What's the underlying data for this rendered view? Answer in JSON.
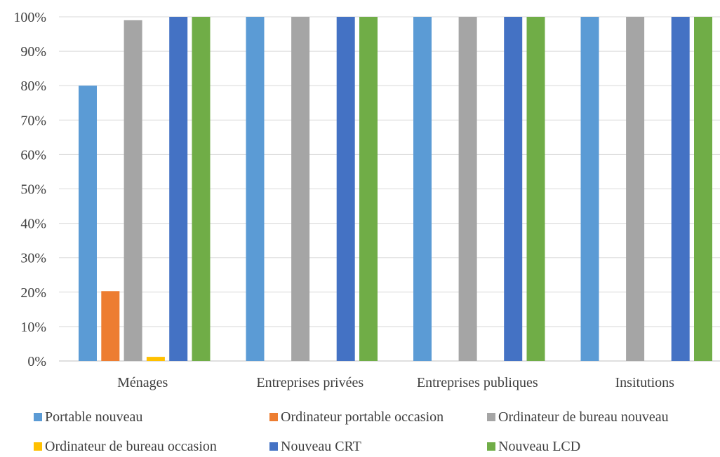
{
  "chart_data": {
    "type": "bar",
    "categories": [
      "Ménages",
      "Entreprises privées",
      "Entreprises publiques",
      "Insitutions"
    ],
    "series": [
      {
        "name": "Portable nouveau",
        "color": "#5b9bd5",
        "values": [
          80,
          100,
          100,
          100
        ]
      },
      {
        "name": "Ordinateur portable occasion",
        "color": "#ed7d31",
        "values": [
          20.3,
          0,
          0,
          0
        ]
      },
      {
        "name": "Ordinateur de bureau nouveau",
        "color": "#a5a5a5",
        "values": [
          99,
          100,
          100,
          100
        ]
      },
      {
        "name": "Ordinateur de bureau occasion",
        "color": "#ffc000",
        "values": [
          1.2,
          0,
          0,
          0
        ]
      },
      {
        "name": "Nouveau CRT",
        "color": "#4472c4",
        "values": [
          100,
          100,
          100,
          100
        ]
      },
      {
        "name": "Nouveau LCD",
        "color": "#70ad47",
        "values": [
          100,
          100,
          100,
          100
        ]
      }
    ],
    "ylim": [
      0,
      100
    ],
    "yticks": [
      "0%",
      "10%",
      "20%",
      "30%",
      "40%",
      "50%",
      "60%",
      "70%",
      "80%",
      "90%",
      "100%"
    ],
    "grid": true,
    "legend": "bottom"
  }
}
